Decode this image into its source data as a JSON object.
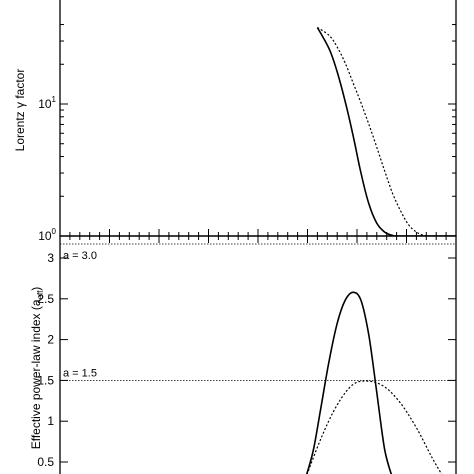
{
  "chart_data": [
    {
      "type": "line",
      "panel": "top",
      "ylabel": "Lorentz γ factor",
      "yscale": "log",
      "ylim": [
        1,
        40
      ],
      "xlim": [
        0,
        1
      ],
      "yticks": [
        {
          "value": 1,
          "base": "10",
          "exp": "0"
        },
        {
          "value": 10,
          "base": "10",
          "exp": "1"
        }
      ],
      "series": [
        {
          "style": "solid",
          "x": [
            0.65,
            0.68,
            0.7,
            0.72,
            0.74,
            0.76,
            0.78,
            0.8,
            0.82,
            0.84,
            0.86,
            1.0
          ],
          "y": [
            38,
            26,
            17.5,
            10.5,
            5.8,
            3.0,
            1.75,
            1.25,
            1.07,
            1.01,
            1.0,
            1.0
          ]
        },
        {
          "style": "dotted",
          "x": [
            0.65,
            0.68,
            0.7,
            0.72,
            0.74,
            0.76,
            0.78,
            0.8,
            0.82,
            0.84,
            0.86,
            0.88,
            0.9,
            0.92,
            0.94,
            1.0
          ],
          "y": [
            38,
            33,
            27,
            20.5,
            14.5,
            10.2,
            7.0,
            4.7,
            3.1,
            2.1,
            1.55,
            1.22,
            1.07,
            1.01,
            1.0,
            1.0
          ]
        }
      ]
    },
    {
      "type": "line",
      "panel": "bottom",
      "ylabel": "Effective power-law index (a",
      "ylabel_sub": "eff",
      "ylabel_end": ")",
      "ylim": [
        0.3,
        3.0
      ],
      "xlim": [
        0,
        1
      ],
      "yticks": [
        {
          "value": 0.5,
          "label": "0.5"
        },
        {
          "value": 1,
          "label": "1"
        },
        {
          "value": 1.5,
          "label": "1.5"
        },
        {
          "value": 2,
          "label": "2"
        },
        {
          "value": 2.5,
          "label": "2.5"
        },
        {
          "value": 3,
          "label": "3"
        }
      ],
      "annotations": [
        {
          "text": "a = 3.0",
          "y": 2.97
        },
        {
          "text": "a = 1.5",
          "y": 1.5
        }
      ],
      "series": [
        {
          "style": "solid",
          "x": [
            0.62,
            0.64,
            0.66,
            0.68,
            0.7,
            0.72,
            0.74,
            0.76,
            0.78,
            0.8,
            0.82,
            0.84
          ],
          "y": [
            0.3,
            0.65,
            1.2,
            1.75,
            2.2,
            2.48,
            2.58,
            2.48,
            2.05,
            1.35,
            0.65,
            0.3
          ]
        },
        {
          "style": "dotted",
          "x": [
            0.62,
            0.66,
            0.7,
            0.74,
            0.78,
            0.82,
            0.86,
            0.9,
            0.94,
            0.97
          ],
          "y": [
            0.3,
            0.8,
            1.2,
            1.45,
            1.49,
            1.42,
            1.22,
            0.92,
            0.55,
            0.3
          ]
        }
      ]
    }
  ]
}
